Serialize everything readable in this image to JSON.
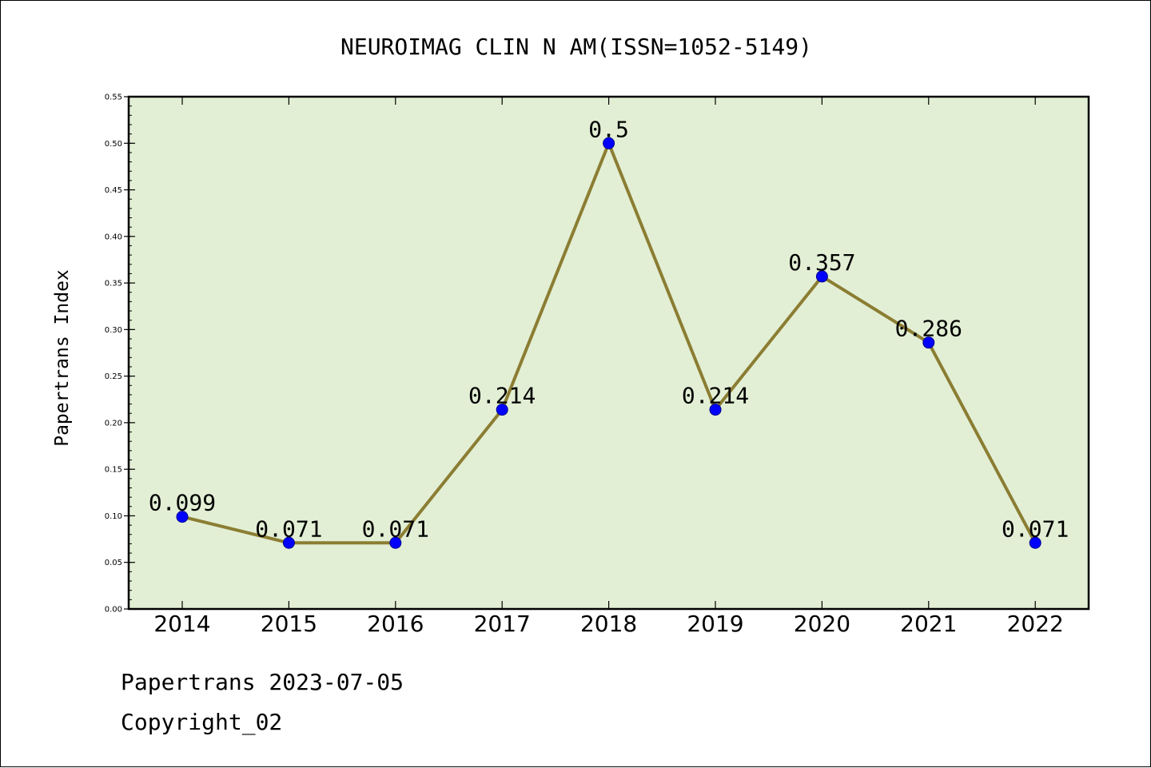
{
  "chart_data": {
    "type": "line",
    "title": "NEUROIMAG CLIN N AM(ISSN=1052-5149)",
    "xlabel": "",
    "ylabel": "Papertrans Index",
    "categories": [
      "2014",
      "2015",
      "2016",
      "2017",
      "2018",
      "2019",
      "2020",
      "2021",
      "2022"
    ],
    "series": [
      {
        "values": [
          0.099,
          0.071,
          0.071,
          0.214,
          0.5,
          0.214,
          0.357,
          0.286,
          0.071
        ],
        "labels": [
          "0.099",
          "0.071",
          "0.071",
          "0.214",
          "0.5",
          "0.214",
          "0.357",
          "0.286",
          "0.071"
        ]
      }
    ],
    "ylim": [
      0,
      0.55
    ],
    "yticks": [
      0.0,
      0.05,
      0.1,
      0.15,
      0.2,
      0.25,
      0.3,
      0.35,
      0.4,
      0.45,
      0.5,
      0.55
    ],
    "ytick_labels": [
      "0.00",
      "0.05",
      "0.10",
      "0.15",
      "0.20",
      "0.25",
      "0.30",
      "0.35",
      "0.40",
      "0.45",
      "0.50",
      "0.55"
    ],
    "grid": false,
    "legend": "none"
  },
  "footer": {
    "line1": "Papertrans 2023-07-05",
    "line2": "Copyright_02"
  },
  "colors": {
    "plot_background": "#e2efd5",
    "line": "#8b7d32",
    "marker": "#0000ff",
    "axes": "#000000"
  }
}
